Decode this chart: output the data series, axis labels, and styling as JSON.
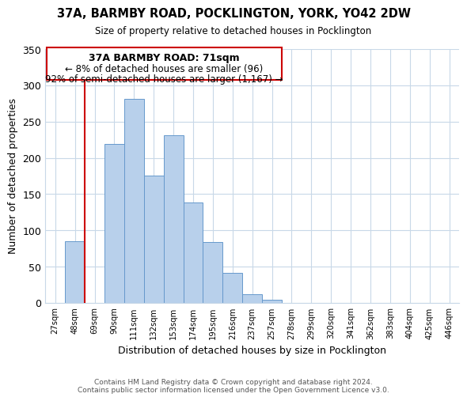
{
  "title": "37A, BARMBY ROAD, POCKLINGTON, YORK, YO42 2DW",
  "subtitle": "Size of property relative to detached houses in Pocklington",
  "xlabel": "Distribution of detached houses by size in Pocklington",
  "ylabel": "Number of detached properties",
  "bar_labels": [
    "27sqm",
    "48sqm",
    "69sqm",
    "90sqm",
    "111sqm",
    "132sqm",
    "153sqm",
    "174sqm",
    "195sqm",
    "216sqm",
    "237sqm",
    "257sqm",
    "278sqm",
    "299sqm",
    "320sqm",
    "341sqm",
    "362sqm",
    "383sqm",
    "404sqm",
    "425sqm",
    "446sqm"
  ],
  "bar_heights": [
    0,
    85,
    0,
    219,
    281,
    175,
    231,
    138,
    84,
    41,
    12,
    4,
    0,
    0,
    0,
    0,
    0,
    0,
    0,
    0,
    0
  ],
  "bar_color": "#b8d0eb",
  "bar_edge_color": "#6699cc",
  "ylim": [
    0,
    350
  ],
  "yticks": [
    0,
    50,
    100,
    150,
    200,
    250,
    300,
    350
  ],
  "property_line_label": "37A BARMBY ROAD: 71sqm",
  "annotation_line1": "← 8% of detached houses are smaller (96)",
  "annotation_line2": "92% of semi-detached houses are larger (1,167) →",
  "footnote1": "Contains HM Land Registry data © Crown copyright and database right 2024.",
  "footnote2": "Contains public sector information licensed under the Open Government Licence v3.0.",
  "box_color": "#ffffff",
  "box_edge_color": "#cc0000",
  "line_color": "#cc0000",
  "background_color": "#ffffff",
  "grid_color": "#c8d8e8"
}
